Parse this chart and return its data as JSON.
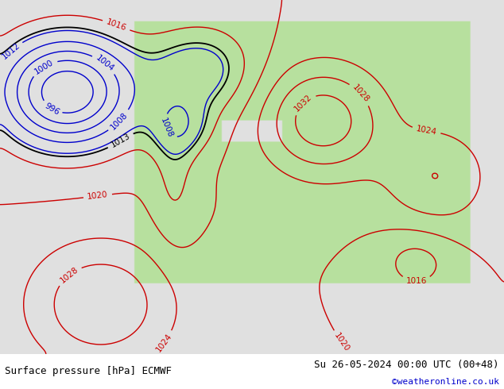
{
  "title_left": "Surface pressure [hPa] ECMWF",
  "title_right": "Su 26-05-2024 00:00 UTC (00+48)",
  "credit": "©weatheronline.co.uk",
  "figsize": [
    6.34,
    4.9
  ],
  "dpi": 100,
  "bg_map_color": "#d0e8d0",
  "bg_sea_color": "#e8e8e8",
  "land_color": "#c8e8b0",
  "bottom_bar_color": "#f0f0f0",
  "bottom_bar_height": 0.09,
  "title_fontsize": 9,
  "credit_color": "#0000cc",
  "credit_fontsize": 8,
  "contour_colors": {
    "below_1013": "#0000cc",
    "at_1013": "#000000",
    "above_1013": "#cc0000"
  },
  "label_fontsize": 7.5
}
